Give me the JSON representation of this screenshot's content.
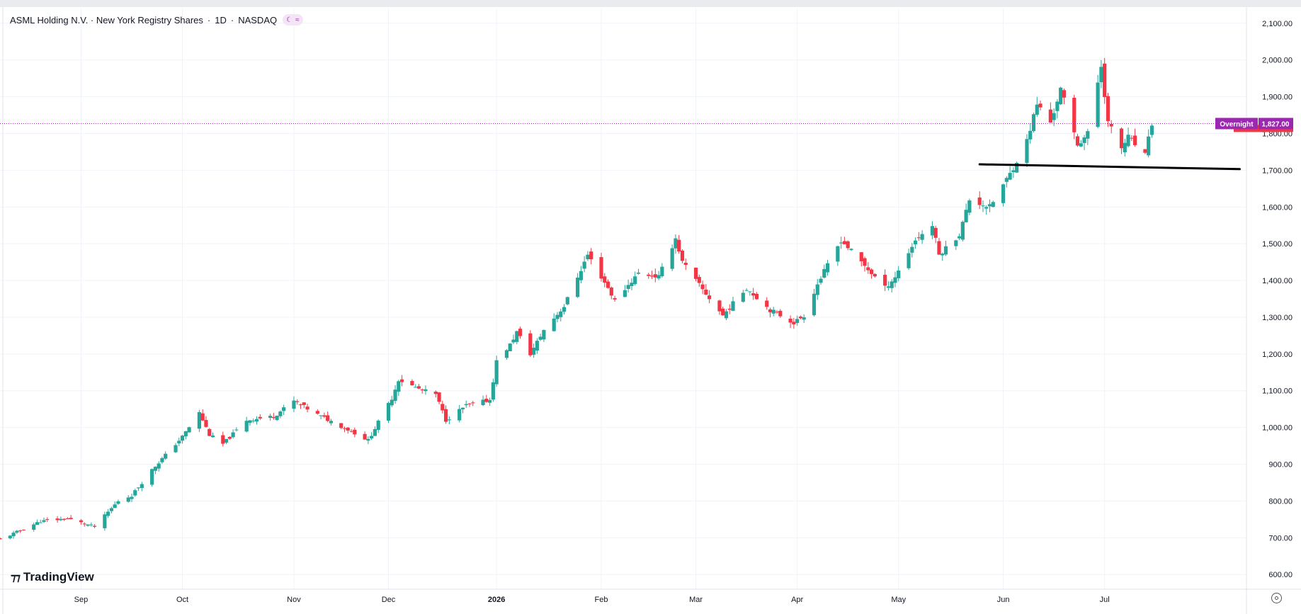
{
  "header": {
    "symbol_name": "ASML Holding N.V. · New York Registry Shares",
    "interval": "1D",
    "exchange": "NASDAQ",
    "badge_icons": [
      "moon-icon",
      "approx-icon"
    ]
  },
  "brand": {
    "name": "TradingView"
  },
  "colors": {
    "up": "#26a69a",
    "down": "#f23645",
    "session_line": "#9c27b0",
    "trendline": "#000000"
  },
  "price_label": {
    "session": "Overnight",
    "value": "1,827.00"
  },
  "chart_data": {
    "type": "candlestick",
    "title": "ASML Holding N.V. · New York Registry Shares · 1D · NASDAQ",
    "xlabel": "",
    "ylabel": "",
    "ylim": [
      560,
      2140
    ],
    "y_ticks": [
      600,
      700,
      800,
      900,
      1000,
      1100,
      1200,
      1300,
      1400,
      1500,
      1600,
      1700,
      1800,
      1900,
      2000,
      2100
    ],
    "y_tick_labels": [
      "600.00",
      "700.00",
      "800.00",
      "900.00",
      "1,000.00",
      "1,100.00",
      "1,200.00",
      "1,300.00",
      "1,400.00",
      "1,500.00",
      "1,600.00",
      "1,700.00",
      "1,800.00",
      "1,900.00",
      "2,000.00",
      "2,100.00"
    ],
    "x_range": [
      "2025-08-08",
      "2026-08-12"
    ],
    "x_ticks": [
      {
        "label": "Sep",
        "date": "2025-09-01",
        "bold": false
      },
      {
        "label": "Oct",
        "date": "2025-10-01",
        "bold": false
      },
      {
        "label": "Nov",
        "date": "2025-11-03",
        "bold": false
      },
      {
        "label": "Dec",
        "date": "2025-12-01",
        "bold": false
      },
      {
        "label": "2026",
        "date": "2026-01-02",
        "bold": true
      },
      {
        "label": "Feb",
        "date": "2026-02-02",
        "bold": false
      },
      {
        "label": "Mar",
        "date": "2026-03-02",
        "bold": false
      },
      {
        "label": "Apr",
        "date": "2026-04-01",
        "bold": false
      },
      {
        "label": "May",
        "date": "2026-05-01",
        "bold": false
      },
      {
        "label": "Jun",
        "date": "2026-06-01",
        "bold": false
      },
      {
        "label": "Jul",
        "date": "2026-07-01",
        "bold": false
      }
    ],
    "grid": true,
    "last_price": 1827,
    "anchors": [
      [
        "2025-08-08",
        695
      ],
      [
        "2025-08-20",
        745
      ],
      [
        "2025-08-28",
        752
      ],
      [
        "2025-09-05",
        730
      ],
      [
        "2025-09-12",
        800
      ],
      [
        "2025-09-16",
        815
      ],
      [
        "2025-09-22",
        885
      ],
      [
        "2025-10-01",
        975
      ],
      [
        "2025-10-06",
        1040
      ],
      [
        "2025-10-09",
        980
      ],
      [
        "2025-10-13",
        955
      ],
      [
        "2025-10-20",
        1020
      ],
      [
        "2025-10-28",
        1030
      ],
      [
        "2025-11-03",
        1072
      ],
      [
        "2025-11-10",
        1035
      ],
      [
        "2025-11-20",
        990
      ],
      [
        "2025-11-25",
        965
      ],
      [
        "2025-12-02",
        1080
      ],
      [
        "2025-12-04",
        1130
      ],
      [
        "2025-12-10",
        1105
      ],
      [
        "2025-12-15",
        1090
      ],
      [
        "2025-12-18",
        1020
      ],
      [
        "2025-12-24",
        1060
      ],
      [
        "2025-12-31",
        1075
      ],
      [
        "2026-01-02",
        1180
      ],
      [
        "2026-01-06",
        1225
      ],
      [
        "2026-01-08",
        1260
      ],
      [
        "2026-01-12",
        1200
      ],
      [
        "2026-01-16",
        1265
      ],
      [
        "2026-01-22",
        1330
      ],
      [
        "2026-01-29",
        1470
      ],
      [
        "2026-02-04",
        1380
      ],
      [
        "2026-02-06",
        1345
      ],
      [
        "2026-02-13",
        1420
      ],
      [
        "2026-02-19",
        1410
      ],
      [
        "2026-02-24",
        1515
      ],
      [
        "2026-02-26",
        1450
      ],
      [
        "2026-03-04",
        1375
      ],
      [
        "2026-03-10",
        1305
      ],
      [
        "2026-03-17",
        1380
      ],
      [
        "2026-03-24",
        1320
      ],
      [
        "2026-03-31",
        1285
      ],
      [
        "2026-04-03",
        1305
      ],
      [
        "2026-04-07",
        1390
      ],
      [
        "2026-04-14",
        1510
      ],
      [
        "2026-04-20",
        1450
      ],
      [
        "2026-04-27",
        1380
      ],
      [
        "2026-04-30",
        1410
      ],
      [
        "2026-05-06",
        1510
      ],
      [
        "2026-05-11",
        1550
      ],
      [
        "2026-05-13",
        1470
      ],
      [
        "2026-05-19",
        1525
      ],
      [
        "2026-05-22",
        1620
      ],
      [
        "2026-05-28",
        1600
      ],
      [
        "2026-06-03",
        1690
      ],
      [
        "2026-06-08",
        1780
      ],
      [
        "2026-06-11",
        1880
      ],
      [
        "2026-06-15",
        1830
      ],
      [
        "2026-06-18",
        1920
      ],
      [
        "2026-06-23",
        1770
      ],
      [
        "2026-06-26",
        1800
      ],
      [
        "2026-06-30",
        1985
      ],
      [
        "2026-07-02",
        1830
      ],
      [
        "2026-07-06",
        1760
      ],
      [
        "2026-07-08",
        1790
      ],
      [
        "2026-07-13",
        1740
      ],
      [
        "2026-07-15",
        1827
      ]
    ],
    "trendline": {
      "from": [
        "2026-05-25",
        1716
      ],
      "to": [
        "2026-08-10",
        1703
      ]
    }
  }
}
